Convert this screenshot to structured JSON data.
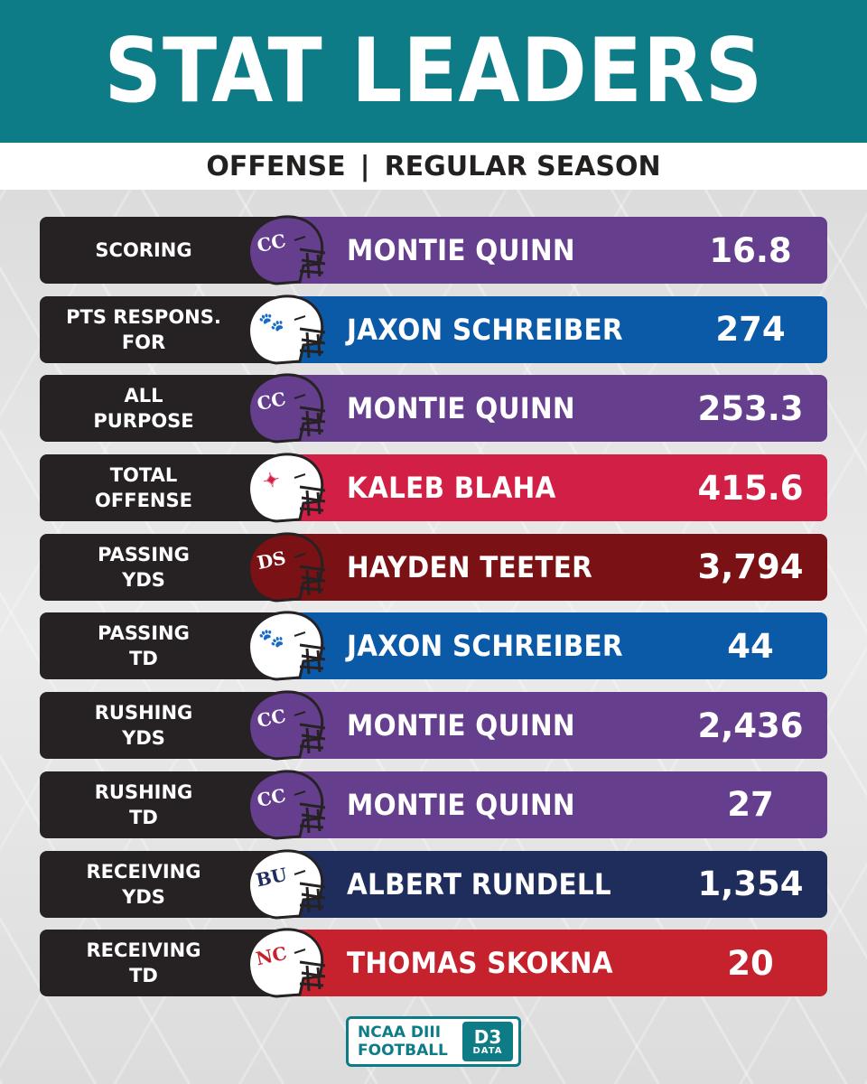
{
  "header": {
    "title": "STAT LEADERS"
  },
  "subheader": {
    "left": "OFFENSE",
    "separator": "|",
    "right": "REGULAR SEASON"
  },
  "colors": {
    "teal": "#0e7c86",
    "purple": "#653f8e",
    "blue": "#0b5aa8",
    "red": "#d21f45",
    "maroon": "#7a1114",
    "navy": "#1e2d5c",
    "scarlet": "#c5222e"
  },
  "leaders": [
    {
      "category": "SCORING",
      "player": "MONTIE QUINN",
      "value": "16.8",
      "color": "#653f8e",
      "helmet": "purple-cc-helmet-icon",
      "shell": "#653f8e",
      "mark": "CC",
      "markColor": "#ffffff"
    },
    {
      "category": "PTS RESPONS.\nFOR",
      "player": "JAXON SCHREIBER",
      "value": "274",
      "color": "#0b5aa8",
      "helmet": "white-bobcat-helmet-icon",
      "shell": "#ffffff",
      "mark": "🐾",
      "markColor": "#e2b23b"
    },
    {
      "category": "ALL\nPURPOSE",
      "player": "MONTIE QUINN",
      "value": "253.3",
      "color": "#653f8e",
      "helmet": "purple-cc-helmet-icon",
      "shell": "#653f8e",
      "mark": "CC",
      "markColor": "#ffffff"
    },
    {
      "category": "TOTAL\nOFFENSE",
      "player": "KALEB BLAHA",
      "value": "415.6",
      "color": "#d21f45",
      "helmet": "white-cardinal-helmet-icon",
      "shell": "#ffffff",
      "mark": "✦",
      "markColor": "#d21f45"
    },
    {
      "category": "PASSING\nYDS",
      "player": "HAYDEN TEETER",
      "value": "3,794",
      "color": "#7a1114",
      "helmet": "maroon-ds-helmet-icon",
      "shell": "#7a1114",
      "mark": "DS",
      "markColor": "#ffffff"
    },
    {
      "category": "PASSING\nTD",
      "player": "JAXON SCHREIBER",
      "value": "44",
      "color": "#0b5aa8",
      "helmet": "white-bobcat-helmet-icon",
      "shell": "#ffffff",
      "mark": "🐾",
      "markColor": "#e2b23b"
    },
    {
      "category": "RUSHING\nYDS",
      "player": "MONTIE QUINN",
      "value": "2,436",
      "color": "#653f8e",
      "helmet": "purple-cc-helmet-icon",
      "shell": "#653f8e",
      "mark": "CC",
      "markColor": "#ffffff"
    },
    {
      "category": "RUSHING\nTD",
      "player": "MONTIE QUINN",
      "value": "27",
      "color": "#653f8e",
      "helmet": "purple-cc-helmet-icon",
      "shell": "#653f8e",
      "mark": "CC",
      "markColor": "#ffffff"
    },
    {
      "category": "RECEIVING\nYDS",
      "player": "ALBERT RUNDELL",
      "value": "1,354",
      "color": "#1e2d5c",
      "helmet": "white-bu-helmet-icon",
      "shell": "#ffffff",
      "mark": "BU",
      "markColor": "#1e2d5c"
    },
    {
      "category": "RECEIVING\nTD",
      "player": "THOMAS SKOKNA",
      "value": "20",
      "color": "#c5222e",
      "helmet": "white-nc-helmet-icon",
      "shell": "#ffffff",
      "mark": "NC",
      "markColor": "#c5222e"
    }
  ],
  "footer": {
    "logo_text": "NCAA DIII\nFOOTBALL",
    "badge_top": "D3",
    "badge_bottom": "DATA"
  }
}
